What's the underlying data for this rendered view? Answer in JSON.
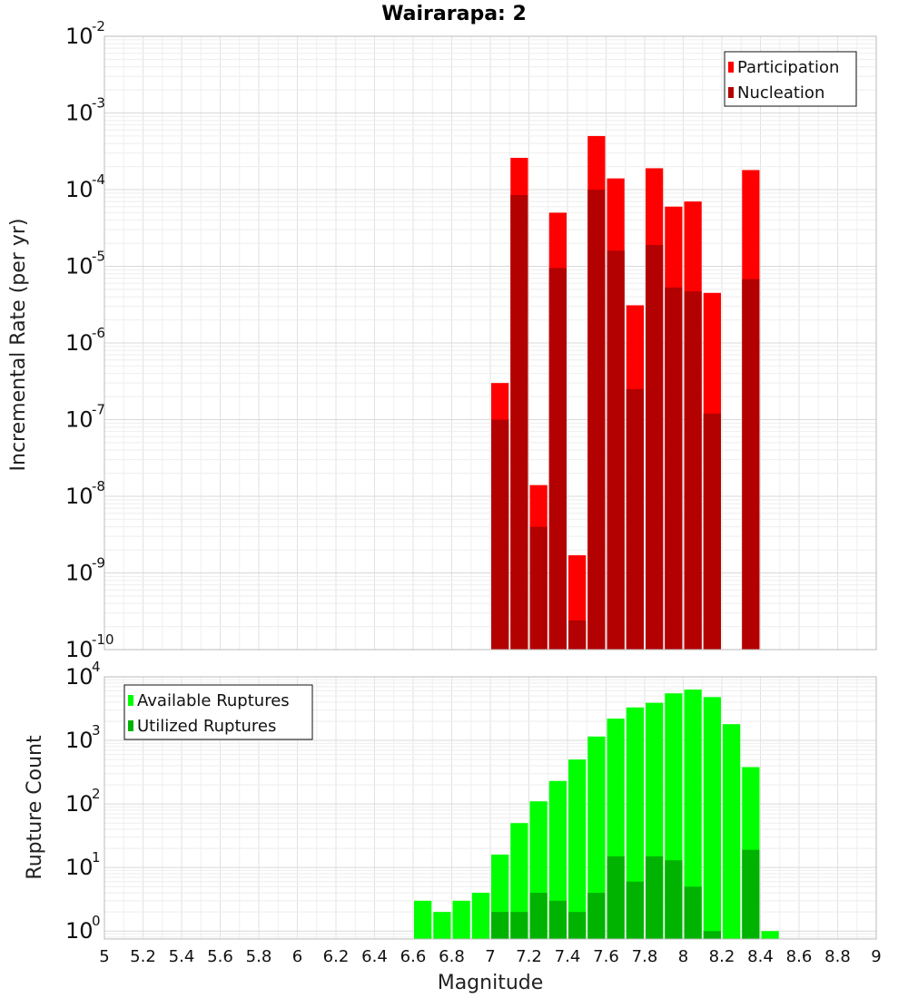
{
  "chart_data": [
    {
      "type": "bar",
      "title": "Wairarapa: 2",
      "xlabel": "",
      "ylabel": "Incremental Rate (per yr)",
      "yscale": "log",
      "ylim": [
        1e-10,
        0.01
      ],
      "xlim": [
        5,
        9
      ],
      "bin_width": 0.1,
      "legend_position": "top-right",
      "series": [
        {
          "name": "Participation",
          "color": "#ff0000",
          "x": [
            7.05,
            7.15,
            7.25,
            7.35,
            7.45,
            7.55,
            7.65,
            7.75,
            7.85,
            7.95,
            8.05,
            8.15,
            8.35
          ],
          "values": [
            3e-07,
            0.00026,
            1.4e-08,
            5e-05,
            1.7e-09,
            0.0005,
            0.00014,
            3.1e-06,
            0.00019,
            6e-05,
            7e-05,
            4.5e-06,
            0.00018
          ]
        },
        {
          "name": "Nucleation",
          "color": "#b30000",
          "x": [
            7.05,
            7.15,
            7.25,
            7.35,
            7.45,
            7.55,
            7.65,
            7.75,
            7.85,
            7.95,
            8.05,
            8.15,
            8.35
          ],
          "values": [
            1e-07,
            8.5e-05,
            4e-09,
            9.5e-06,
            2.4e-10,
            0.0001,
            1.6e-05,
            2.5e-07,
            1.9e-05,
            5.3e-06,
            4.7e-06,
            1.2e-07,
            6.8e-06
          ]
        }
      ]
    },
    {
      "type": "bar",
      "title": "",
      "xlabel": "Magnitude",
      "ylabel": "Rupture Count",
      "yscale": "log",
      "ylim": [
        0.75,
        10000
      ],
      "xlim": [
        5,
        9
      ],
      "bin_width": 0.1,
      "legend_position": "top-left",
      "x_ticks": [
        "5",
        "5.2",
        "5.4",
        "5.6",
        "5.8",
        "6",
        "6.2",
        "6.4",
        "6.6",
        "6.8",
        "7",
        "7.2",
        "7.4",
        "7.6",
        "7.8",
        "8",
        "8.2",
        "8.4",
        "8.6",
        "8.8",
        "9"
      ],
      "series": [
        {
          "name": "Available Ruptures",
          "color": "#00ff00",
          "x": [
            6.65,
            6.75,
            6.85,
            6.95,
            7.05,
            7.15,
            7.25,
            7.35,
            7.45,
            7.55,
            7.65,
            7.75,
            7.85,
            7.95,
            8.05,
            8.15,
            8.25,
            8.35,
            8.45
          ],
          "values": [
            3,
            2,
            3,
            4,
            16,
            50,
            110,
            230,
            500,
            1150,
            2200,
            3300,
            3900,
            5500,
            6300,
            4800,
            1800,
            380,
            1
          ]
        },
        {
          "name": "Utilized Ruptures",
          "color": "#00b300",
          "x": [
            7.05,
            7.15,
            7.25,
            7.35,
            7.45,
            7.55,
            7.65,
            7.75,
            7.85,
            7.95,
            8.05,
            8.15,
            8.35
          ],
          "values": [
            2,
            2,
            4,
            3,
            2,
            4,
            15,
            6,
            15,
            13,
            5,
            1,
            19
          ]
        }
      ]
    }
  ]
}
